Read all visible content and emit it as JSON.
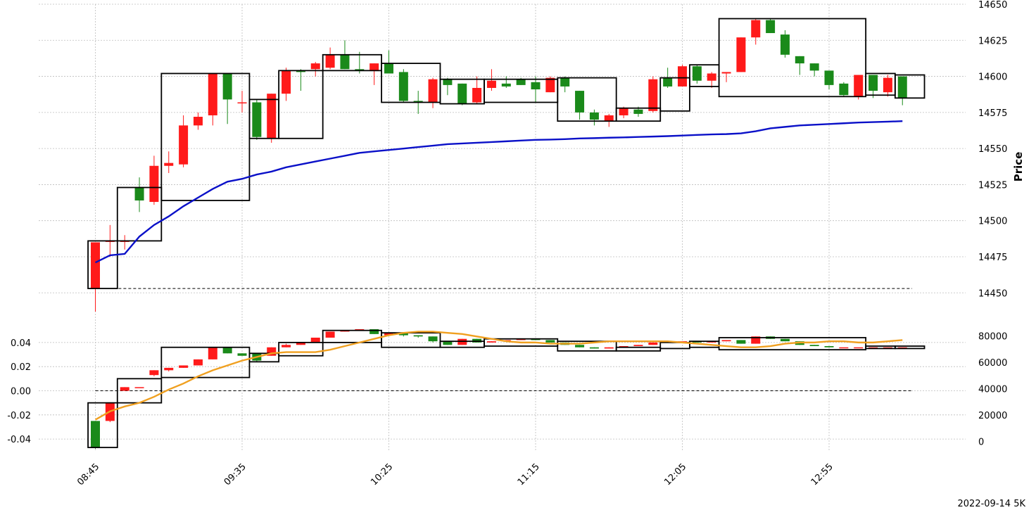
{
  "chart_data": {
    "type": "candlestick",
    "footer_label": "2022-09-14 5K",
    "x_tick_labels": [
      "08:45",
      "09:35",
      "10:25",
      "11:15",
      "12:05",
      "12:55"
    ],
    "x_tick_indices": [
      0,
      10,
      20,
      30,
      40,
      50
    ],
    "colors": {
      "up": "#ff1a1a",
      "down": "#1a8a1a",
      "vwap": "#0a10c8",
      "lower_line": "#f0a020",
      "box": "#000000"
    },
    "price_panel": {
      "ylabel": "Price",
      "ylim": [
        14436,
        14650
      ],
      "yticks": [
        14450,
        14475,
        14500,
        14525,
        14550,
        14575,
        14600,
        14625,
        14650
      ],
      "reference_level": 14453,
      "candles": [
        [
          14453,
          14485,
          14437,
          14485
        ],
        [
          14486,
          14486,
          14475,
          14497
        ],
        [
          14486,
          14486,
          14480,
          14490
        ],
        [
          14523,
          14514,
          14506,
          14530
        ],
        [
          14513,
          14538,
          14511,
          14545
        ],
        [
          14538,
          14540,
          14533,
          14548
        ],
        [
          14539,
          14566,
          14537,
          14573
        ],
        [
          14566,
          14572,
          14563,
          14575
        ],
        [
          14573,
          14602,
          14566,
          14602
        ],
        [
          14602,
          14584,
          14567,
          14602
        ],
        [
          14582,
          14582,
          14575,
          14590
        ],
        [
          14582,
          14558,
          14556,
          14584
        ],
        [
          14557,
          14588,
          14554,
          14588
        ],
        [
          14588,
          14604,
          14583,
          14606
        ],
        [
          14604,
          14603,
          14590,
          14605
        ],
        [
          14605,
          14609,
          14600,
          14610
        ],
        [
          14606,
          14615,
          14605,
          14620
        ],
        [
          14615,
          14605,
          14605,
          14625
        ],
        [
          14605,
          14604,
          14602,
          14617
        ],
        [
          14604,
          14609,
          14594,
          14609
        ],
        [
          14609,
          14602,
          14602,
          14618
        ],
        [
          14603,
          14583,
          14582,
          14605
        ],
        [
          14583,
          14582,
          14574,
          14590
        ],
        [
          14582,
          14598,
          14578,
          14599
        ],
        [
          14598,
          14594,
          14587,
          14599
        ],
        [
          14595,
          14581,
          14580,
          14595
        ],
        [
          14582,
          14592,
          14581,
          14600
        ],
        [
          14592,
          14597,
          14590,
          14605
        ],
        [
          14595,
          14593,
          14592,
          14600
        ],
        [
          14598,
          14594,
          14594,
          14599
        ],
        [
          14596,
          14591,
          14582,
          14600
        ],
        [
          14589,
          14599,
          14589,
          14600
        ],
        [
          14599,
          14593,
          14589,
          14600
        ],
        [
          14590,
          14575,
          14570,
          14590
        ],
        [
          14575,
          14570,
          14566,
          14577
        ],
        [
          14569,
          14573,
          14565,
          14574
        ],
        [
          14573,
          14578,
          14571,
          14579
        ],
        [
          14577,
          14574,
          14572,
          14579
        ],
        [
          14576,
          14598,
          14575,
          14600
        ],
        [
          14599,
          14593,
          14592,
          14606
        ],
        [
          14593,
          14607,
          14593,
          14608
        ],
        [
          14607,
          14597,
          14595,
          14608
        ],
        [
          14597,
          14602,
          14592,
          14603
        ],
        [
          14602,
          14603,
          14596,
          14603
        ],
        [
          14603,
          14627,
          14603,
          14627
        ],
        [
          14627,
          14639,
          14622,
          14640
        ],
        [
          14639,
          14630,
          14630,
          14640
        ],
        [
          14629,
          14615,
          14613,
          14632
        ],
        [
          14614,
          14609,
          14601,
          14614
        ],
        [
          14609,
          14604,
          14600,
          14609
        ],
        [
          14604,
          14594,
          14591,
          14604
        ],
        [
          14595,
          14587,
          14586,
          14596
        ],
        [
          14586,
          14601,
          14584,
          14601
        ],
        [
          14601,
          14590,
          14585,
          14601
        ],
        [
          14589,
          14599,
          14586,
          14601
        ],
        [
          14600,
          14585,
          14580,
          14600
        ]
      ],
      "vwap": [
        14471,
        14476,
        14477,
        14489,
        14497,
        14503,
        14510,
        14516,
        14522,
        14527,
        14529,
        14532,
        14534,
        14537,
        14539,
        14541,
        14543,
        14545,
        14547,
        14548,
        14549,
        14550,
        14551,
        14552,
        14553,
        14553.5,
        14554,
        14554.5,
        14555,
        14555.5,
        14556,
        14556.2,
        14556.5,
        14557,
        14557.2,
        14557.5,
        14557.7,
        14558,
        14558.3,
        14558.6,
        14559,
        14559.4,
        14559.8,
        14560,
        14560.5,
        14562,
        14564,
        14565,
        14566,
        14566.5,
        14567,
        14567.5,
        14568,
        14568.3,
        14568.6,
        14569
      ],
      "boxes": [
        [
          0,
          1,
          14453,
          14486
        ],
        [
          2,
          4,
          14486,
          14523
        ],
        [
          5,
          10,
          14514,
          14602
        ],
        [
          11,
          12,
          14557,
          14584
        ],
        [
          13,
          15,
          14557,
          14604
        ],
        [
          16,
          19,
          14604,
          14615
        ],
        [
          20,
          23,
          14582,
          14609
        ],
        [
          24,
          26,
          14581,
          14598
        ],
        [
          27,
          31,
          14582,
          14598
        ],
        [
          32,
          35,
          14569,
          14599
        ],
        [
          36,
          38,
          14569,
          14578
        ],
        [
          39,
          40,
          14576,
          14599
        ],
        [
          41,
          42,
          14593,
          14608
        ],
        [
          43,
          52,
          14586,
          14640
        ],
        [
          53,
          54,
          14587,
          14602
        ],
        [
          55,
          56,
          14585,
          14601
        ]
      ]
    },
    "lower_panel": {
      "left_ylim": [
        -0.0475,
        0.0475
      ],
      "left_yticks": [
        -0.04,
        -0.02,
        0.0,
        0.02,
        0.04
      ],
      "left_tick_labels": [
        "-0.04",
        "-0.02",
        "0.00",
        "0.02",
        "0.04"
      ],
      "right_ylim": [
        -5000,
        82000
      ],
      "right_yticks": [
        0,
        20000,
        40000,
        60000,
        80000
      ],
      "reference_level": 0.0,
      "candles": [
        [
          -0.025,
          -0.047,
          -0.048,
          -0.025
        ],
        [
          -0.025,
          -0.01,
          -0.026,
          -0.01
        ],
        [
          0.0,
          0.003,
          0.0,
          0.003
        ],
        [
          0.003,
          0.003,
          0.003,
          0.003
        ],
        [
          0.013,
          0.017,
          0.012,
          0.017
        ],
        [
          0.017,
          0.019,
          0.016,
          0.019
        ],
        [
          0.019,
          0.021,
          0.019,
          0.021
        ],
        [
          0.021,
          0.026,
          0.021,
          0.026
        ],
        [
          0.026,
          0.036,
          0.026,
          0.036
        ],
        [
          0.036,
          0.031,
          0.031,
          0.036
        ],
        [
          0.031,
          0.029,
          0.029,
          0.031
        ],
        [
          0.031,
          0.025,
          0.024,
          0.031
        ],
        [
          0.029,
          0.036,
          0.029,
          0.036
        ],
        [
          0.036,
          0.038,
          0.036,
          0.039
        ],
        [
          0.038,
          0.04,
          0.038,
          0.04
        ],
        [
          0.04,
          0.044,
          0.04,
          0.044
        ],
        [
          0.044,
          0.049,
          0.044,
          0.049
        ],
        [
          0.049,
          0.05,
          0.049,
          0.05
        ],
        [
          0.05,
          0.051,
          0.05,
          0.051
        ],
        [
          0.051,
          0.047,
          0.047,
          0.051
        ],
        [
          0.046,
          0.048,
          0.046,
          0.048
        ],
        [
          0.048,
          0.046,
          0.045,
          0.048
        ],
        [
          0.046,
          0.045,
          0.044,
          0.046
        ],
        [
          0.045,
          0.041,
          0.04,
          0.045
        ],
        [
          0.041,
          0.038,
          0.038,
          0.041
        ],
        [
          0.038,
          0.043,
          0.038,
          0.043
        ],
        [
          0.043,
          0.04,
          0.04,
          0.043
        ],
        [
          0.04,
          0.041,
          0.04,
          0.041
        ],
        [
          0.041,
          0.042,
          0.041,
          0.042
        ],
        [
          0.042,
          0.043,
          0.042,
          0.043
        ],
        [
          0.043,
          0.042,
          0.042,
          0.043
        ],
        [
          0.042,
          0.04,
          0.04,
          0.042
        ],
        [
          0.04,
          0.038,
          0.038,
          0.04
        ],
        [
          0.038,
          0.036,
          0.036,
          0.038
        ],
        [
          0.036,
          0.035,
          0.035,
          0.036
        ],
        [
          0.035,
          0.036,
          0.035,
          0.036
        ],
        [
          0.036,
          0.037,
          0.036,
          0.037
        ],
        [
          0.037,
          0.038,
          0.037,
          0.038
        ],
        [
          0.038,
          0.04,
          0.038,
          0.04
        ],
        [
          0.04,
          0.041,
          0.04,
          0.041
        ],
        [
          0.041,
          0.041,
          0.041,
          0.041
        ],
        [
          0.041,
          0.04,
          0.04,
          0.041
        ],
        [
          0.04,
          0.041,
          0.04,
          0.041
        ],
        [
          0.041,
          0.042,
          0.041,
          0.042
        ],
        [
          0.042,
          0.039,
          0.039,
          0.042
        ],
        [
          0.039,
          0.045,
          0.039,
          0.045
        ],
        [
          0.045,
          0.043,
          0.043,
          0.045
        ],
        [
          0.043,
          0.041,
          0.041,
          0.043
        ],
        [
          0.041,
          0.038,
          0.038,
          0.041
        ],
        [
          0.038,
          0.037,
          0.037,
          0.038
        ],
        [
          0.037,
          0.036,
          0.036,
          0.037
        ],
        [
          0.036,
          0.036,
          0.036,
          0.036
        ],
        [
          0.036,
          0.036,
          0.036,
          0.036
        ],
        [
          0.036,
          0.036,
          0.036,
          0.036
        ],
        [
          0.036,
          0.036,
          0.036,
          0.036
        ],
        [
          0.036,
          0.036,
          0.036,
          0.036
        ]
      ],
      "line": [
        -0.024,
        -0.017,
        -0.013,
        -0.01,
        -0.005,
        0.001,
        0.006,
        0.012,
        0.017,
        0.021,
        0.025,
        0.028,
        0.031,
        0.032,
        0.032,
        0.032,
        0.034,
        0.037,
        0.04,
        0.043,
        0.046,
        0.048,
        0.049,
        0.049,
        0.048,
        0.047,
        0.045,
        0.043,
        0.041,
        0.04,
        0.04,
        0.039,
        0.039,
        0.039,
        0.04,
        0.041,
        0.041,
        0.041,
        0.041,
        0.041,
        0.04,
        0.039,
        0.038,
        0.037,
        0.036,
        0.036,
        0.037,
        0.039,
        0.04,
        0.04,
        0.041,
        0.041,
        0.04,
        0.04,
        0.041,
        0.042
      ],
      "boxes": [
        [
          0,
          1,
          -0.047,
          -0.01
        ],
        [
          2,
          4,
          -0.01,
          0.01
        ],
        [
          5,
          10,
          0.011,
          0.036
        ],
        [
          11,
          12,
          0.024,
          0.031
        ],
        [
          13,
          15,
          0.029,
          0.04
        ],
        [
          16,
          19,
          0.04,
          0.05
        ],
        [
          20,
          23,
          0.036,
          0.048
        ],
        [
          24,
          26,
          0.036,
          0.041
        ],
        [
          27,
          31,
          0.037,
          0.043
        ],
        [
          32,
          35,
          0.033,
          0.041
        ],
        [
          36,
          38,
          0.033,
          0.036
        ],
        [
          39,
          40,
          0.035,
          0.04
        ],
        [
          41,
          42,
          0.036,
          0.041
        ],
        [
          43,
          52,
          0.034,
          0.044
        ],
        [
          53,
          54,
          0.035,
          0.037
        ],
        [
          55,
          56,
          0.035,
          0.037
        ]
      ]
    }
  }
}
